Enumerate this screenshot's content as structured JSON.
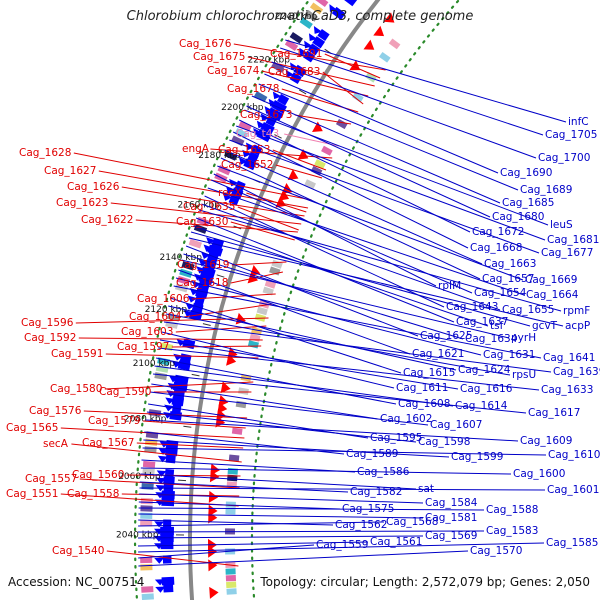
{
  "title": "Chlorobium chlorochromatii CaD3, complete genome",
  "footer": {
    "accession": "Accession: NC_007514",
    "summary": "Topology: circular; Length: 2,572,079 bp; Genes: 2,050"
  },
  "ruler_ticks": [
    {
      "label": "2240 kbp"
    },
    {
      "label": "2220 kbp"
    },
    {
      "label": "2200 kbp"
    },
    {
      "label": "2180 kbp"
    },
    {
      "label": "2160 kbp"
    },
    {
      "label": "2140 kbp"
    },
    {
      "label": "2120 kbp"
    },
    {
      "label": "2100 kbp"
    },
    {
      "label": "2080 kbp"
    },
    {
      "label": "2060 kbp"
    },
    {
      "label": "2040 kbp"
    }
  ],
  "colors": {
    "forward_label": "#e00000",
    "reverse_label": "#0000c8",
    "trna_label": "#f080b0",
    "backbone": "#888888",
    "forward_arrow": "#ff0000",
    "reverse_arrow": "#0000ff",
    "gc_skew": "#2a8a2a"
  },
  "left_labels": [
    "Cag_1676",
    "Cag_1691",
    "Cag_1675",
    "Cag_1674",
    "Cag_1683",
    "Cag_1678",
    "Cag_1673",
    "Cag_t43",
    "engA",
    "Cag_1653",
    "Cag_1652",
    "Cag_1628",
    "Cag_1627",
    "Cag_1626",
    "Cag_1623",
    "Cag_1622",
    "recX",
    "Cag_1635",
    "Cag_1630",
    "Cag_1619",
    "Cag_1618",
    "Cag_1606",
    "Cag_1604",
    "Cag_1596",
    "Cag_1603",
    "Cag_1592",
    "Cag_1597",
    "Cag_1591",
    "Cag_1580",
    "Cag_1590",
    "Cag_1576",
    "Cag_1579",
    "Cag_1565",
    "Cag_1567",
    "secA",
    "Cag_1560",
    "Cag_1557",
    "Cag_1558",
    "Cag_1551",
    "Cag_1540"
  ],
  "right_labels": [
    "infC",
    "Cag_1705",
    "Cag_1700",
    "Cag_1690",
    "Cag_1689",
    "Cag_1685",
    "Cag_1680",
    "leuS",
    "Cag_1672",
    "Cag_1681",
    "Cag_1668",
    "Cag_1677",
    "Cag_1663",
    "Cag_1657",
    "Cag_1669",
    "rpIM",
    "Cag_1654",
    "Cag_1664",
    "Cag_1643",
    "Cag_1655",
    "rpmF",
    "Cag_1637",
    "tsf",
    "gcvT",
    "acpP",
    "Cag_1625",
    "Cag_1634",
    "pyrH",
    "Cag_1621",
    "Cag_1631",
    "Cag_1641",
    "Cag_1615",
    "Cag_1624",
    "rpsU",
    "Cag_1639",
    "Cag_1611",
    "Cag_1616",
    "Cag_1633",
    "Cag_1608",
    "Cag_1614",
    "Cag_1617",
    "Cag_1602",
    "Cag_1607",
    "Cag_1595",
    "Cag_1598",
    "Cag_1609",
    "Cag_1589",
    "Cag_1599",
    "Cag_1610",
    "Cag_1586",
    "Cag_1600",
    "sat",
    "Cag_1582",
    "Cag_1601",
    "Cag_1584",
    "Cag_1575",
    "Cag_1588",
    "Cag_1581",
    "Cag_1562",
    "Cag_1568",
    "Cag_1583",
    "Cag_1569",
    "Cag_1561",
    "Cag_1585",
    "Cag_1559",
    "Cag_1570"
  ]
}
